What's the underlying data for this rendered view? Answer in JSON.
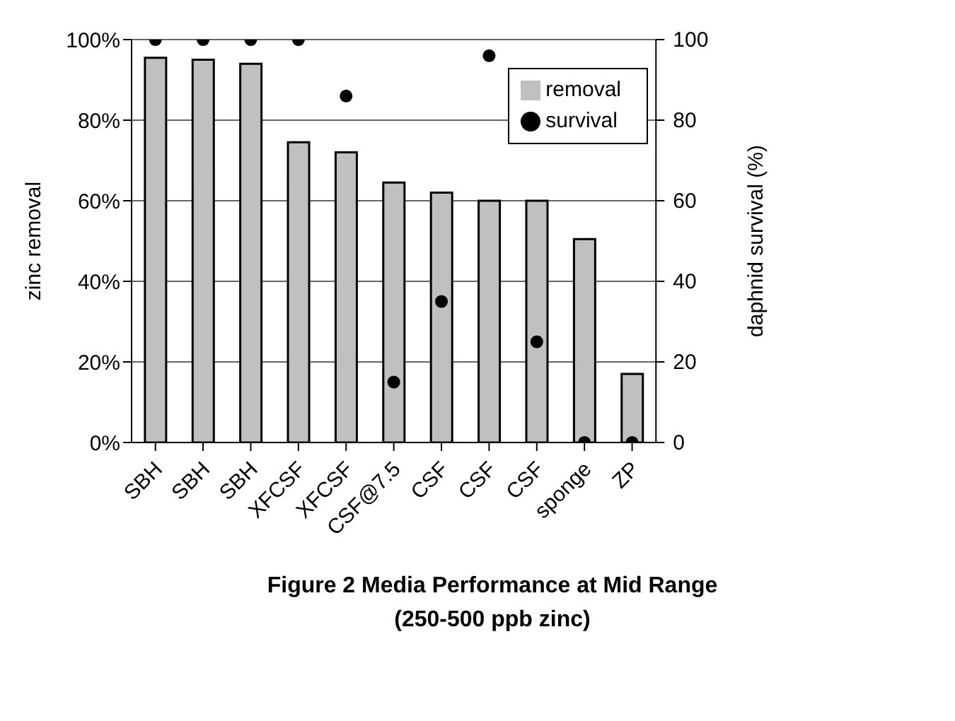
{
  "chart_data": {
    "type": "bar",
    "title": "Figure 2 Media Performance at Mid Range",
    "subtitle": "(250-500 ppb zinc)",
    "ylabel": "zinc removal",
    "y2label": "daphnid survival (%)",
    "categories": [
      "SBH",
      "SBH",
      "SBH",
      "XFCSF",
      "XFCSF",
      "CSF@7.5",
      "CSF",
      "CSF",
      "CSF",
      "sponge",
      "ZP"
    ],
    "series": [
      {
        "name": "removal",
        "color": "#c0c0c0",
        "values": [
          95.5,
          95,
          94,
          74.5,
          72,
          64.5,
          62,
          60,
          60,
          50.5,
          17
        ]
      },
      {
        "name": "survival",
        "type": "scatter",
        "axis": "y2",
        "color": "#000000",
        "values": [
          100,
          100,
          100,
          100,
          86,
          15,
          35,
          96,
          25,
          0,
          0
        ]
      }
    ],
    "ylim": [
      0,
      100
    ],
    "yticks": [
      {
        "value": 0,
        "label": "0%"
      },
      {
        "value": 20,
        "label": "20%"
      },
      {
        "value": 40,
        "label": "40%"
      },
      {
        "value": 60,
        "label": "60%"
      },
      {
        "value": 80,
        "label": "80%"
      },
      {
        "value": 100,
        "label": "100%"
      }
    ],
    "y2lim": [
      0,
      100
    ],
    "y2ticks": [
      0,
      20,
      40,
      60,
      80,
      100
    ],
    "grid": "y",
    "legend": "top right",
    "marker": "circle"
  }
}
